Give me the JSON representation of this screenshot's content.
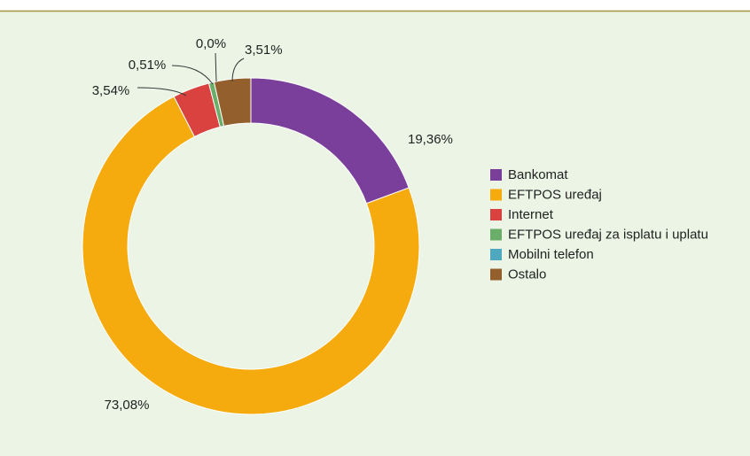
{
  "chart_data": {
    "type": "donut",
    "categories": [
      "Bankomat",
      "EFTPOS uređaj",
      "Internet",
      "EFTPOS uređaj za isplatu i uplatu",
      "Mobilni telefon",
      "Ostalo"
    ],
    "values": [
      19.36,
      73.08,
      3.54,
      0.51,
      0.0,
      3.51
    ],
    "value_labels": [
      "19,36%",
      "73,08%",
      "3,54%",
      "0,51%",
      "0,0%",
      "3,51%"
    ],
    "colors": [
      "#7a3f9b",
      "#f5ab0e",
      "#d9423f",
      "#6aae69",
      "#4ea8bf",
      "#935f2d"
    ],
    "legend": "right"
  }
}
